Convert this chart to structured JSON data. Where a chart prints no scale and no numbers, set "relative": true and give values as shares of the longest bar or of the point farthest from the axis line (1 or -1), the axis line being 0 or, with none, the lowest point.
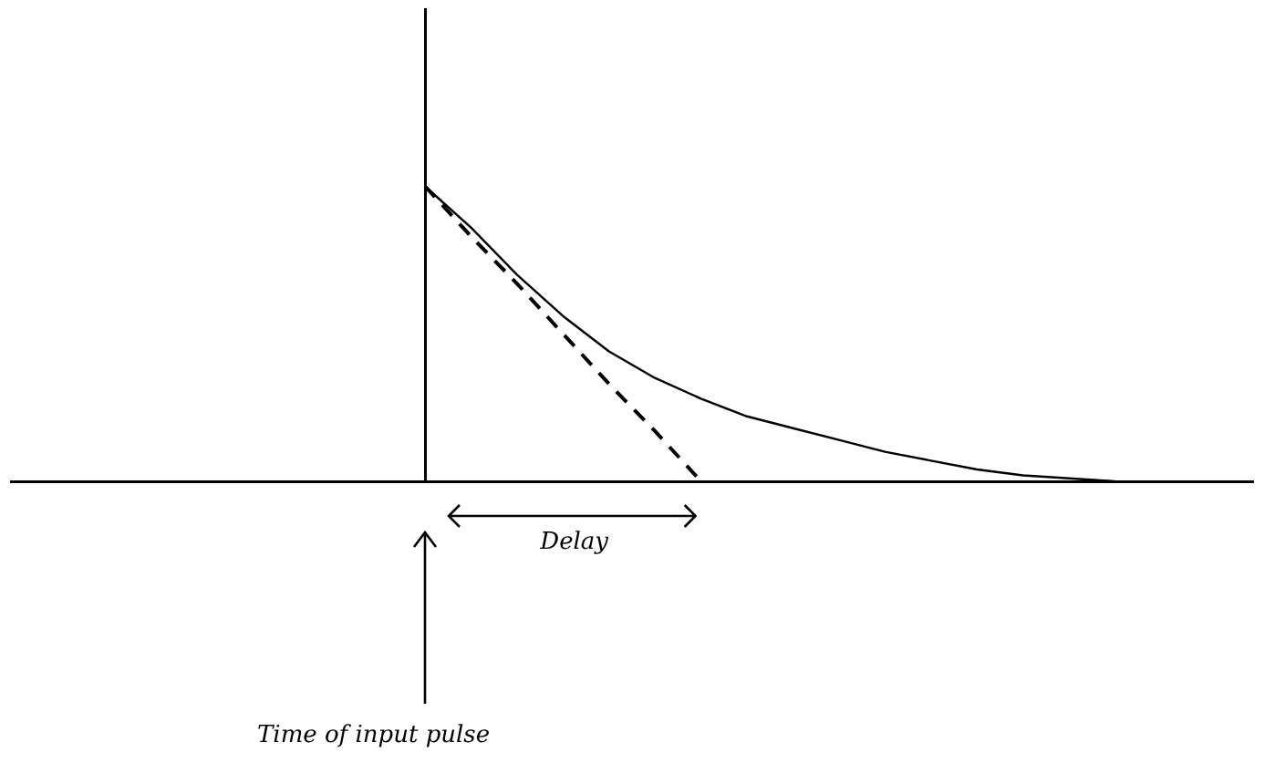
{
  "chart_data": {
    "type": "line",
    "relative": true,
    "categories": [
      null,
      null,
      null,
      null,
      null,
      null,
      null,
      null,
      null,
      null,
      null,
      null,
      null,
      null,
      null,
      null,
      null,
      null,
      null,
      null,
      null,
      null,
      null,
      null,
      null,
      null,
      null,
      null
    ],
    "series": [
      {
        "color": "#000000",
        "line_style": "solid",
        "values": [
          null,
          null,
          null,
          null,
          null,
          null,
          null,
          null,
          null,
          1.0,
          0.86,
          0.7,
          0.56,
          0.44,
          0.35,
          0.28,
          0.22,
          0.18,
          0.14,
          0.1,
          0.07,
          0.04,
          0.02,
          0.01,
          0.0,
          null,
          null,
          null
        ]
      },
      {
        "color": "#000000",
        "line_style": "dashed",
        "values": [
          null,
          null,
          null,
          null,
          null,
          null,
          null,
          null,
          null,
          1.0,
          0.83,
          0.67,
          0.5,
          0.33,
          0.17,
          0.0,
          null,
          null,
          null,
          null,
          null,
          null,
          null,
          null,
          null,
          null,
          null,
          null
        ]
      }
    ],
    "annotations": [
      "Delay",
      "Time of input pulse"
    ],
    "grid": false,
    "legend": false,
    "marker": "none"
  }
}
